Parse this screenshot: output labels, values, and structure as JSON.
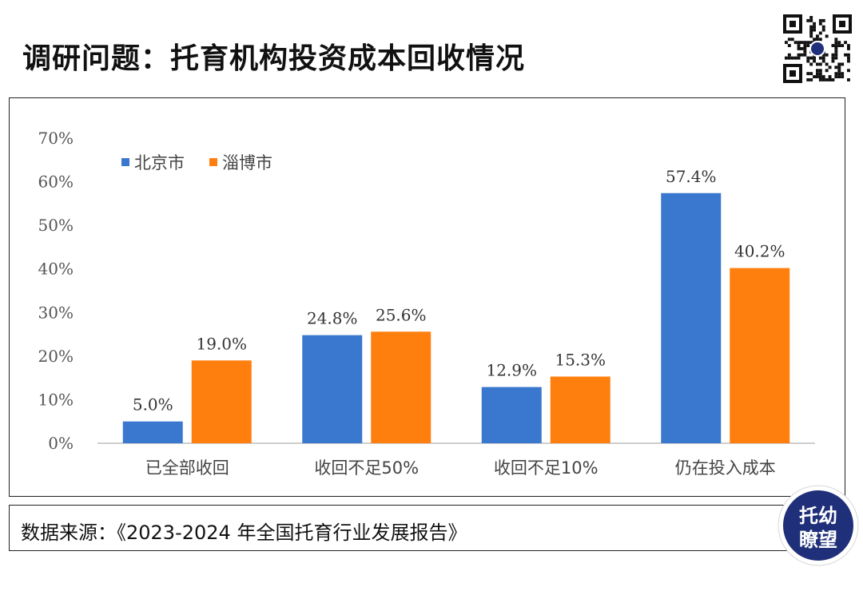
{
  "header": {
    "title": "调研问题：托育机构投资成本回收情况"
  },
  "chart_data": {
    "type": "bar",
    "categories": [
      "已全部收回",
      "收回不足50%",
      "收回不足10%",
      "仍在投入成本"
    ],
    "series": [
      {
        "name": "北京市",
        "values": [
          5.0,
          24.8,
          12.9,
          57.4
        ],
        "labels": [
          "5.0%",
          "24.8%",
          "12.9%",
          "57.4%"
        ],
        "color": "#3a78cf"
      },
      {
        "name": "淄博市",
        "values": [
          19.0,
          25.6,
          15.3,
          40.2
        ],
        "labels": [
          "19.0%",
          "25.6%",
          "15.3%",
          "40.2%"
        ],
        "color": "#ff7f0e"
      }
    ],
    "ylim": [
      0,
      70
    ],
    "yticks": [
      "0%",
      "10%",
      "20%",
      "30%",
      "40%",
      "50%",
      "60%",
      "70%"
    ],
    "legend_position": "top-left",
    "grid": false
  },
  "source": {
    "text": "数据来源：《2023-2024 年全国托育行业发展报告》"
  },
  "badge": {
    "line1": "托幼",
    "line2": "瞭望",
    "colors": {
      "outer": "#ffffff",
      "inner": "#1f2f7a"
    }
  },
  "qr_icon": "qr-code-icon"
}
